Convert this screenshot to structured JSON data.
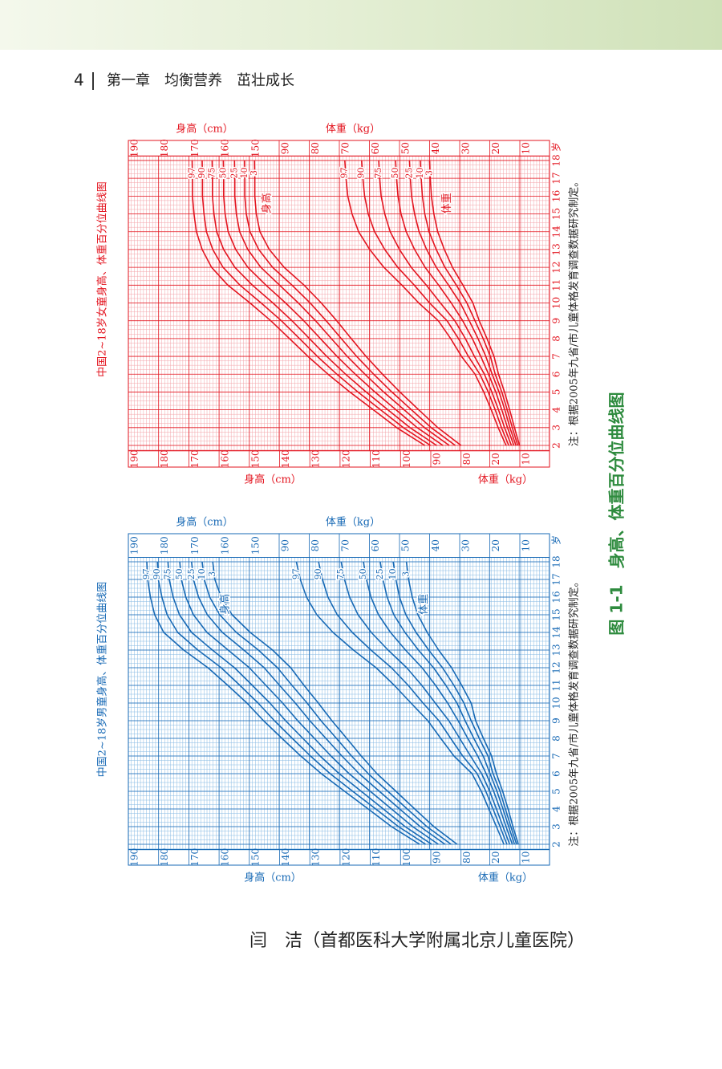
{
  "header": {
    "page_number": "4",
    "chapter": "第一章　均衡营养　茁壮成长"
  },
  "charts": [
    {
      "title": "中国2~18岁女童身高、体重百分位曲线图",
      "note": "注：根据2005年九省/市儿童体格发育调查数据研究制定。",
      "age_unit": "岁",
      "height_axis_label": "身高（cm）",
      "weight_axis_label": "体重（kg）",
      "height_curve_label": "身高",
      "weight_curve_label": "体重",
      "color": "#e3141f",
      "grid_color": "#f3a3a8",
      "ages": [
        2,
        3,
        4,
        5,
        6,
        7,
        8,
        9,
        10,
        11,
        12,
        13,
        14,
        15,
        16,
        17,
        18
      ],
      "top_height_ticks": [
        190,
        180,
        170,
        160,
        150
      ],
      "bottom_height_ticks": [
        190,
        180,
        170,
        160,
        150,
        140,
        130,
        120,
        110,
        100,
        90,
        80
      ],
      "top_weight_ticks": [
        90,
        80,
        70,
        60,
        50,
        40,
        30,
        20,
        10
      ],
      "bottom_weight_ticks": [
        20,
        10
      ],
      "height_series": [
        {
          "name": "3",
          "values": [
            80.0,
            87.7,
            94.0,
            100.2,
            106.0,
            111.4,
            116.3,
            121.1,
            126.2,
            131.9,
            138.5,
            143.4,
            146.5,
            147.7,
            148.2,
            148.2,
            148.3
          ]
        },
        {
          "name": "10",
          "values": [
            81.9,
            89.9,
            96.4,
            102.9,
            108.9,
            114.5,
            119.6,
            124.6,
            129.9,
            135.9,
            142.3,
            146.9,
            149.8,
            151.0,
            151.5,
            151.5,
            151.6
          ]
        },
        {
          "name": "25",
          "values": [
            83.9,
            92.1,
            98.8,
            105.6,
            111.8,
            117.6,
            122.9,
            128.1,
            133.8,
            140.0,
            146.2,
            150.5,
            153.2,
            154.3,
            154.8,
            154.8,
            154.9
          ]
        },
        {
          "name": "50",
          "values": [
            86.0,
            94.5,
            101.5,
            108.5,
            115.0,
            121.0,
            126.5,
            132.0,
            138.0,
            144.5,
            150.5,
            154.5,
            157.0,
            158.0,
            158.5,
            158.5,
            158.6
          ]
        },
        {
          "name": "75",
          "values": [
            88.1,
            96.9,
            104.2,
            111.4,
            118.2,
            124.4,
            130.1,
            135.9,
            142.2,
            149.0,
            154.8,
            158.5,
            160.8,
            161.7,
            162.2,
            162.2,
            162.3
          ]
        },
        {
          "name": "90",
          "values": [
            90.1,
            99.1,
            106.6,
            114.1,
            121.1,
            127.5,
            133.4,
            139.4,
            146.1,
            153.1,
            158.7,
            162.1,
            164.2,
            165.0,
            165.5,
            165.5,
            165.6
          ]
        },
        {
          "name": "97",
          "values": [
            92.0,
            101.3,
            109.0,
            116.8,
            124.0,
            130.6,
            136.7,
            142.9,
            149.8,
            157.1,
            162.5,
            165.6,
            167.5,
            168.3,
            168.8,
            168.8,
            168.9
          ]
        }
      ],
      "weight_series": [
        {
          "name": "3",
          "values": [
            10.1,
            11.8,
            13.4,
            15.1,
            17.1,
            18.6,
            20.9,
            23.5,
            25.6,
            28.9,
            32.4,
            35.1,
            37.3,
            38.6,
            39.4,
            39.8,
            40.0
          ]
        },
        {
          "name": "10",
          "values": [
            10.7,
            12.5,
            14.2,
            16.0,
            18.2,
            19.8,
            22.2,
            24.9,
            27.6,
            31.1,
            34.9,
            37.8,
            40.2,
            41.6,
            42.4,
            42.8,
            43.1
          ]
        },
        {
          "name": "25",
          "values": [
            11.3,
            13.3,
            15.0,
            16.9,
            19.2,
            21.3,
            23.9,
            26.8,
            29.8,
            33.7,
            37.8,
            41.0,
            43.5,
            45.0,
            46.0,
            46.4,
            46.7
          ]
        },
        {
          "name": "50",
          "values": [
            12.0,
            14.1,
            16.0,
            18.0,
            20.4,
            23.0,
            25.8,
            29.0,
            32.8,
            37.0,
            41.5,
            45.0,
            47.8,
            49.5,
            50.5,
            51.0,
            51.3
          ]
        },
        {
          "name": "75",
          "values": [
            12.8,
            15.1,
            17.1,
            19.3,
            21.8,
            25.1,
            28.1,
            31.6,
            36.4,
            41.1,
            46.1,
            50.0,
            53.1,
            54.9,
            56.1,
            56.6,
            56.9
          ]
        },
        {
          "name": "90",
          "values": [
            13.7,
            16.1,
            18.2,
            20.5,
            23.3,
            27.1,
            30.4,
            34.2,
            40.0,
            45.1,
            50.6,
            54.9,
            58.3,
            60.4,
            61.6,
            62.2,
            62.6
          ]
        },
        {
          "name": "97",
          "values": [
            14.6,
            17.2,
            19.5,
            22.0,
            24.9,
            29.4,
            33.0,
            37.1,
            43.6,
            49.2,
            55.2,
            59.9,
            63.6,
            65.8,
            67.2,
            67.8,
            68.2
          ]
        }
      ]
    },
    {
      "title": "中国2~18岁男童身高、体重百分位曲线图",
      "note": "注：根据2005年九省/市儿童体格发育调查数据研究制定。",
      "age_unit": "岁",
      "height_axis_label": "身高（cm）",
      "weight_axis_label": "体重（kg）",
      "height_curve_label": "身高",
      "weight_curve_label": "体重",
      "color": "#1769b5",
      "grid_color": "#86b9e3",
      "ages": [
        2,
        3,
        4,
        5,
        6,
        7,
        8,
        9,
        10,
        11,
        12,
        13,
        14,
        15,
        16,
        17,
        18
      ],
      "top_height_ticks": [
        190,
        180,
        170,
        160,
        150
      ],
      "bottom_height_ticks": [
        190,
        180,
        170,
        160,
        150,
        140,
        130,
        120,
        110,
        100,
        90,
        80
      ],
      "top_weight_ticks": [
        90,
        80,
        70,
        60,
        50,
        40,
        30,
        20,
        10
      ],
      "bottom_weight_ticks": [
        20,
        10
      ],
      "height_series": [
        {
          "name": "3",
          "values": [
            81.3,
            89.0,
            95.3,
            101.5,
            107.8,
            113.0,
            117.8,
            122.7,
            127.2,
            131.9,
            136.3,
            142.3,
            149.7,
            155.7,
            159.3,
            161.4,
            162.1
          ]
        },
        {
          "name": "10",
          "values": [
            83.3,
            91.3,
            97.8,
            104.2,
            110.7,
            116.2,
            121.2,
            126.3,
            130.9,
            135.9,
            140.7,
            147.0,
            154.3,
            159.8,
            163.1,
            164.9,
            165.6
          ]
        },
        {
          "name": "25",
          "values": [
            85.3,
            93.5,
            100.3,
            107.0,
            113.7,
            119.4,
            124.7,
            130.0,
            134.8,
            140.0,
            145.1,
            151.8,
            158.9,
            163.9,
            166.8,
            168.5,
            169.1
          ]
        },
        {
          "name": "50",
          "values": [
            87.5,
            96.0,
            103.0,
            110.0,
            117.0,
            123.0,
            128.5,
            134.0,
            139.0,
            144.5,
            150.0,
            157.0,
            164.0,
            168.5,
            171.0,
            172.5,
            173.0
          ]
        },
        {
          "name": "75",
          "values": [
            89.7,
            98.5,
            105.7,
            113.0,
            120.3,
            126.6,
            132.3,
            138.0,
            143.2,
            149.0,
            154.9,
            162.2,
            169.1,
            173.1,
            175.2,
            176.5,
            176.9
          ]
        },
        {
          "name": "90",
          "values": [
            91.7,
            100.7,
            108.2,
            115.8,
            123.3,
            129.8,
            135.8,
            141.7,
            147.1,
            153.1,
            159.3,
            167.0,
            173.7,
            177.2,
            178.9,
            180.1,
            180.4
          ]
        },
        {
          "name": "97",
          "values": [
            93.7,
            103.0,
            110.7,
            118.5,
            126.2,
            133.0,
            139.2,
            145.3,
            150.8,
            157.1,
            163.7,
            171.7,
            178.3,
            181.3,
            182.7,
            183.6,
            183.9
          ]
        }
      ],
      "weight_series": [
        {
          "name": "3",
          "values": [
            10.5,
            12.3,
            13.9,
            15.7,
            17.8,
            19.4,
            22.1,
            24.7,
            26.2,
            29.3,
            32.7,
            37.0,
            40.8,
            43.9,
            45.8,
            47.0,
            47.7
          ]
        },
        {
          "name": "10",
          "values": [
            11.1,
            13.0,
            14.8,
            16.6,
            18.9,
            20.6,
            23.5,
            26.2,
            28.6,
            31.9,
            35.7,
            40.3,
            44.5,
            47.9,
            50.0,
            51.2,
            52.1
          ]
        },
        {
          "name": "25",
          "values": [
            11.8,
            13.7,
            15.6,
            17.6,
            19.9,
            22.2,
            25.3,
            28.2,
            30.9,
            34.6,
            38.7,
            43.7,
            48.2,
            51.9,
            54.1,
            55.5,
            56.4
          ]
        },
        {
          "name": "50",
          "values": [
            12.5,
            14.6,
            16.6,
            18.7,
            21.2,
            24.0,
            27.3,
            30.5,
            34.0,
            38.0,
            42.5,
            48.0,
            53.0,
            57.0,
            59.5,
            61.0,
            62.0
          ]
        },
        {
          "name": "75",
          "values": [
            13.4,
            15.6,
            17.8,
            20.0,
            22.7,
            26.4,
            30.0,
            33.6,
            38.1,
            42.6,
            47.6,
            53.8,
            59.4,
            63.8,
            66.6,
            68.3,
            69.4
          ]
        },
        {
          "name": "90",
          "values": [
            14.3,
            16.6,
            18.9,
            21.3,
            24.2,
            29.0,
            33.0,
            36.9,
            42.2,
            47.1,
            52.7,
            59.5,
            65.7,
            70.7,
            73.8,
            75.6,
            76.9
          ]
        },
        {
          "name": "97",
          "values": [
            15.3,
            17.8,
            20.3,
            22.8,
            25.9,
            31.9,
            36.3,
            40.6,
            46.2,
            51.7,
            57.8,
            65.3,
            72.1,
            77.5,
            80.9,
            83.0,
            84.3
          ]
        }
      ]
    }
  ],
  "caption": "图 1-1　身高、体重百分位曲线图",
  "author": "闫　洁（首都医科大学附属北京儿童医院）"
}
